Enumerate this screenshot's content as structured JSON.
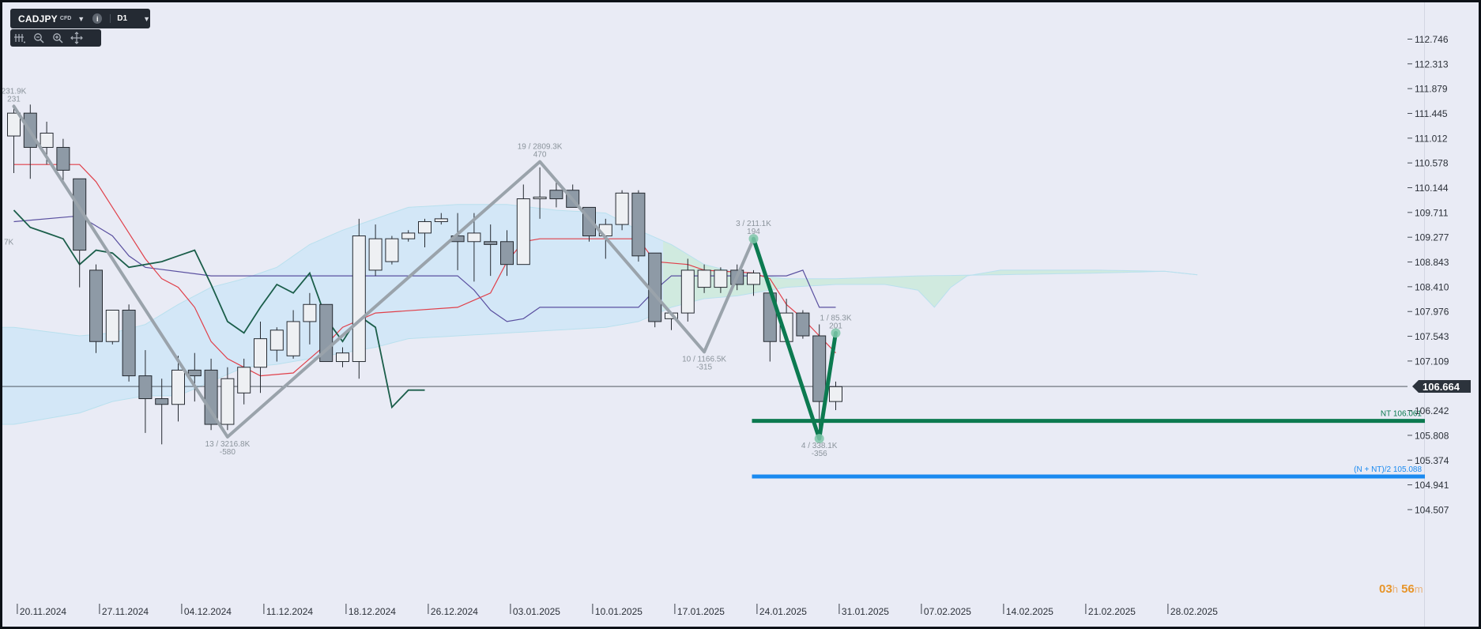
{
  "toolbar": {
    "symbol": "CADJPY",
    "instrument_type": "CFD",
    "timeframe": "D1",
    "info_icon": "info-icon"
  },
  "tools": [
    "crosshair-settings-icon",
    "zoom-out-icon",
    "zoom-in-icon",
    "pan-move-icon"
  ],
  "countdown": {
    "hours": "03",
    "h_unit": "h",
    "minutes": "56",
    "m_unit": "m"
  },
  "colors": {
    "background": "#e9ebf5",
    "bull_candle": "#eef0f3",
    "bear_candle": "#8e9aa6",
    "tenkan": "#e0404a",
    "kijun": "#5a50a0",
    "chikou": "#1b5e4a",
    "cloud": "#cfe6f7",
    "cloud_green": "#cdeadd",
    "zigzag": "#9aa3ab",
    "harmonic": "#0c7a50",
    "nt_line": "#0c7a50",
    "nnt_line": "#1a8af0",
    "price_label": "#2c333c"
  },
  "chart_data": {
    "type": "candlestick",
    "symbol": "CADJPY",
    "timeframe": "D1",
    "ylim": [
      104.3,
      113.1
    ],
    "y_ticks": [
      "112.746",
      "112.313",
      "111.879",
      "111.445",
      "111.012",
      "110.578",
      "110.144",
      "109.711",
      "109.277",
      "108.843",
      "108.410",
      "107.976",
      "107.543",
      "107.109",
      "106.242",
      "105.808",
      "105.374",
      "104.941",
      "104.507"
    ],
    "x_labels": [
      {
        "i": 0.5,
        "label": "20.11.2024"
      },
      {
        "i": 5.5,
        "label": "27.11.2024"
      },
      {
        "i": 10.5,
        "label": "04.12.2024"
      },
      {
        "i": 15.5,
        "label": "11.12.2024"
      },
      {
        "i": 20.5,
        "label": "18.12.2024"
      },
      {
        "i": 25.5,
        "label": "26.12.2024"
      },
      {
        "i": 30.5,
        "label": "03.01.2025"
      },
      {
        "i": 35.5,
        "label": "10.01.2025"
      },
      {
        "i": 40.5,
        "label": "17.01.2025"
      },
      {
        "i": 45.5,
        "label": "24.01.2025"
      },
      {
        "i": 50.5,
        "label": "31.01.2025"
      },
      {
        "i": 55.5,
        "label": "07.02.2025"
      },
      {
        "i": 60.5,
        "label": "14.02.2025"
      },
      {
        "i": 65.5,
        "label": "21.02.2025"
      },
      {
        "i": 70.5,
        "label": "28.02.2025"
      }
    ],
    "current_price": "106.664",
    "candles": [
      {
        "o": 111.05,
        "h": 111.6,
        "l": 110.4,
        "c": 111.45
      },
      {
        "o": 111.45,
        "h": 111.6,
        "l": 110.3,
        "c": 110.85
      },
      {
        "o": 110.85,
        "h": 111.3,
        "l": 110.55,
        "c": 111.1
      },
      {
        "o": 110.85,
        "h": 111.0,
        "l": 110.2,
        "c": 110.45
      },
      {
        "o": 110.3,
        "h": 110.3,
        "l": 108.4,
        "c": 109.05
      },
      {
        "o": 108.7,
        "h": 108.8,
        "l": 107.25,
        "c": 107.45
      },
      {
        "o": 107.45,
        "h": 108.0,
        "l": 107.4,
        "c": 108.0
      },
      {
        "o": 108.0,
        "h": 108.1,
        "l": 106.75,
        "c": 106.85
      },
      {
        "o": 106.85,
        "h": 107.3,
        "l": 105.85,
        "c": 106.45
      },
      {
        "o": 106.45,
        "h": 106.8,
        "l": 105.65,
        "c": 106.35
      },
      {
        "o": 106.35,
        "h": 107.2,
        "l": 106.05,
        "c": 106.95
      },
      {
        "o": 106.95,
        "h": 107.25,
        "l": 106.4,
        "c": 106.85
      },
      {
        "o": 106.95,
        "h": 107.15,
        "l": 105.9,
        "c": 106.0
      },
      {
        "o": 106.0,
        "h": 107.0,
        "l": 105.9,
        "c": 106.8
      },
      {
        "o": 106.55,
        "h": 107.15,
        "l": 106.35,
        "c": 107.0
      },
      {
        "o": 107.0,
        "h": 107.8,
        "l": 106.55,
        "c": 107.5
      },
      {
        "o": 107.3,
        "h": 107.7,
        "l": 107.1,
        "c": 107.65
      },
      {
        "o": 107.2,
        "h": 108.0,
        "l": 107.15,
        "c": 107.8
      },
      {
        "o": 107.8,
        "h": 108.3,
        "l": 107.4,
        "c": 108.1
      },
      {
        "o": 108.1,
        "h": 108.1,
        "l": 107.1,
        "c": 107.1
      },
      {
        "o": 107.1,
        "h": 107.35,
        "l": 107.0,
        "c": 107.25
      },
      {
        "o": 107.1,
        "h": 109.6,
        "l": 106.8,
        "c": 109.3
      },
      {
        "o": 108.7,
        "h": 109.5,
        "l": 108.6,
        "c": 109.25
      },
      {
        "o": 108.85,
        "h": 109.3,
        "l": 108.8,
        "c": 109.25
      },
      {
        "o": 109.25,
        "h": 109.4,
        "l": 109.2,
        "c": 109.35
      },
      {
        "o": 109.35,
        "h": 109.6,
        "l": 109.1,
        "c": 109.55
      },
      {
        "o": 109.55,
        "h": 109.7,
        "l": 109.5,
        "c": 109.6
      },
      {
        "o": 109.3,
        "h": 109.7,
        "l": 108.7,
        "c": 109.2
      },
      {
        "o": 109.2,
        "h": 109.7,
        "l": 108.5,
        "c": 109.35
      },
      {
        "o": 109.2,
        "h": 109.5,
        "l": 108.6,
        "c": 109.15
      },
      {
        "o": 109.2,
        "h": 109.4,
        "l": 108.6,
        "c": 108.8
      },
      {
        "o": 108.8,
        "h": 110.2,
        "l": 108.8,
        "c": 109.95
      },
      {
        "o": 109.95,
        "h": 110.5,
        "l": 109.6,
        "c": 109.98
      },
      {
        "o": 110.1,
        "h": 110.3,
        "l": 109.8,
        "c": 109.95
      },
      {
        "o": 110.1,
        "h": 110.2,
        "l": 109.8,
        "c": 109.8
      },
      {
        "o": 109.8,
        "h": 109.8,
        "l": 109.2,
        "c": 109.3
      },
      {
        "o": 109.3,
        "h": 109.6,
        "l": 108.9,
        "c": 109.5
      },
      {
        "o": 109.5,
        "h": 110.1,
        "l": 109.4,
        "c": 110.05
      },
      {
        "o": 110.05,
        "h": 110.1,
        "l": 108.85,
        "c": 108.95
      },
      {
        "o": 109.0,
        "h": 109.0,
        "l": 107.7,
        "c": 107.8
      },
      {
        "o": 107.85,
        "h": 107.95,
        "l": 107.65,
        "c": 107.95
      },
      {
        "o": 107.95,
        "h": 108.9,
        "l": 107.8,
        "c": 108.7
      },
      {
        "o": 108.4,
        "h": 108.8,
        "l": 108.3,
        "c": 108.7
      },
      {
        "o": 108.4,
        "h": 108.75,
        "l": 108.3,
        "c": 108.7
      },
      {
        "o": 108.7,
        "h": 108.8,
        "l": 108.35,
        "c": 108.45
      },
      {
        "o": 108.45,
        "h": 108.7,
        "l": 108.25,
        "c": 108.65
      },
      {
        "o": 108.3,
        "h": 108.4,
        "l": 107.1,
        "c": 107.45
      },
      {
        "o": 107.45,
        "h": 108.2,
        "l": 107.4,
        "c": 107.95
      },
      {
        "o": 107.95,
        "h": 108.0,
        "l": 107.5,
        "c": 107.55
      },
      {
        "o": 107.55,
        "h": 107.75,
        "l": 105.8,
        "c": 106.4
      },
      {
        "o": 106.4,
        "h": 106.75,
        "l": 106.25,
        "c": 106.66
      }
    ],
    "indicators": {
      "tenkan": [
        [
          0,
          110.55
        ],
        [
          4,
          110.55
        ],
        [
          5,
          110.25
        ],
        [
          6,
          109.8
        ],
        [
          7,
          109.35
        ],
        [
          8,
          108.9
        ],
        [
          9,
          108.55
        ],
        [
          10,
          108.4
        ],
        [
          11,
          108.05
        ],
        [
          12,
          107.45
        ],
        [
          13,
          107.15
        ],
        [
          14,
          107.0
        ],
        [
          15,
          106.85
        ],
        [
          17,
          106.9
        ],
        [
          18,
          107.15
        ],
        [
          19,
          107.4
        ],
        [
          20,
          107.7
        ],
        [
          22,
          107.95
        ],
        [
          27,
          108.05
        ],
        [
          29,
          108.3
        ],
        [
          30,
          108.85
        ],
        [
          31,
          109.2
        ],
        [
          32,
          109.25
        ],
        [
          38,
          109.25
        ],
        [
          39,
          108.85
        ],
        [
          41,
          108.8
        ],
        [
          42,
          108.7
        ],
        [
          45,
          108.65
        ],
        [
          46,
          108.55
        ],
        [
          47,
          108.1
        ],
        [
          48,
          107.85
        ],
        [
          49,
          107.55
        ],
        [
          50,
          107.25
        ]
      ],
      "kijun": [
        [
          0,
          109.55
        ],
        [
          4,
          109.65
        ],
        [
          6,
          109.3
        ],
        [
          7,
          108.95
        ],
        [
          8,
          108.75
        ],
        [
          12,
          108.6
        ],
        [
          27,
          108.6
        ],
        [
          28,
          108.35
        ],
        [
          29,
          108.0
        ],
        [
          30,
          107.8
        ],
        [
          31,
          107.85
        ],
        [
          32,
          108.05
        ],
        [
          38,
          108.05
        ],
        [
          39,
          108.35
        ],
        [
          40,
          108.6
        ],
        [
          47,
          108.6
        ],
        [
          48,
          108.7
        ],
        [
          49,
          108.05
        ],
        [
          50,
          108.05
        ]
      ],
      "chikou": [
        [
          0,
          109.75
        ],
        [
          1,
          109.45
        ],
        [
          2,
          109.35
        ],
        [
          3,
          109.25
        ],
        [
          4,
          108.8
        ],
        [
          5,
          109.05
        ],
        [
          6,
          109.0
        ],
        [
          7,
          108.75
        ],
        [
          9,
          108.85
        ],
        [
          10,
          108.95
        ],
        [
          11,
          109.05
        ],
        [
          12,
          108.45
        ],
        [
          13,
          107.8
        ],
        [
          14,
          107.6
        ],
        [
          15,
          108.05
        ],
        [
          16,
          108.45
        ],
        [
          17,
          108.3
        ],
        [
          18,
          108.65
        ],
        [
          19,
          107.85
        ],
        [
          20,
          107.45
        ],
        [
          21,
          107.9
        ],
        [
          22,
          107.7
        ],
        [
          23,
          106.3
        ],
        [
          24,
          106.6
        ],
        [
          25,
          106.6
        ]
      ],
      "cloud_upper": [
        [
          0,
          107.7
        ],
        [
          4,
          107.55
        ],
        [
          6,
          107.6
        ],
        [
          8,
          107.75
        ],
        [
          10,
          108.1
        ],
        [
          12,
          108.4
        ],
        [
          14,
          108.55
        ],
        [
          16,
          108.75
        ],
        [
          18,
          109.15
        ],
        [
          20,
          109.4
        ],
        [
          22,
          109.6
        ],
        [
          24,
          109.8
        ],
        [
          27,
          109.85
        ],
        [
          30,
          109.85
        ],
        [
          33,
          109.75
        ],
        [
          36,
          109.7
        ],
        [
          38,
          109.4
        ],
        [
          40,
          109.15
        ],
        [
          42,
          108.8
        ],
        [
          44,
          108.65
        ],
        [
          47,
          108.55
        ],
        [
          50,
          108.55
        ],
        [
          55,
          108.6
        ],
        [
          60,
          108.62
        ],
        [
          66,
          108.65
        ],
        [
          70,
          108.68
        ],
        [
          72,
          108.62
        ]
      ],
      "cloud_lower": [
        [
          0,
          106.0
        ],
        [
          4,
          106.2
        ],
        [
          6,
          106.4
        ],
        [
          8,
          106.5
        ],
        [
          10,
          106.5
        ],
        [
          12,
          106.75
        ],
        [
          14,
          107.0
        ],
        [
          16,
          107.05
        ],
        [
          18,
          107.15
        ],
        [
          20,
          107.25
        ],
        [
          22,
          107.35
        ],
        [
          24,
          107.5
        ],
        [
          27,
          107.55
        ],
        [
          30,
          107.6
        ],
        [
          33,
          107.65
        ],
        [
          36,
          107.7
        ],
        [
          38,
          107.8
        ],
        [
          40,
          108.05
        ],
        [
          42,
          108.2
        ],
        [
          44,
          108.25
        ],
        [
          47,
          108.4
        ],
        [
          50,
          108.45
        ],
        [
          53,
          108.45
        ],
        [
          55,
          108.35
        ],
        [
          56,
          108.05
        ],
        [
          57,
          108.4
        ],
        [
          58,
          108.6
        ],
        [
          60,
          108.7
        ],
        [
          66,
          108.7
        ],
        [
          70,
          108.68
        ],
        [
          72,
          108.62
        ]
      ],
      "green_cloud_from": 39.5
    },
    "zigzag": [
      [
        0,
        111.57
      ],
      [
        13,
        105.78
      ],
      [
        32,
        110.6
      ],
      [
        42,
        107.27
      ],
      [
        45,
        109.25
      ],
      [
        49,
        105.75
      ],
      [
        50,
        107.6
      ]
    ],
    "harmonic": [
      [
        45,
        109.25
      ],
      [
        49,
        105.75
      ],
      [
        50,
        107.6
      ]
    ],
    "zigzag_labels": [
      {
        "i": 0,
        "p": 111.57,
        "lines": [
          "231.9K",
          "231"
        ],
        "pos": "above"
      },
      {
        "i": 13,
        "p": 105.78,
        "lines": [
          "13 / 3216.8K",
          "-580"
        ],
        "pos": "below"
      },
      {
        "i": 32,
        "p": 110.6,
        "lines": [
          "19 / 2809.3K",
          "470"
        ],
        "pos": "above"
      },
      {
        "i": 42,
        "p": 107.27,
        "lines": [
          "10 / 1166.5K",
          "-315"
        ],
        "pos": "below"
      },
      {
        "i": 45,
        "p": 109.25,
        "lines": [
          "3 / 211.1K",
          "194"
        ],
        "pos": "above"
      },
      {
        "i": 49,
        "p": 105.75,
        "lines": [
          "4 / 338.1K",
          "-356"
        ],
        "pos": "below"
      },
      {
        "i": 50,
        "p": 107.6,
        "lines": [
          "1 / 85.3K",
          "201"
        ],
        "pos": "above"
      }
    ],
    "left_edge_label": "7K",
    "levels": [
      {
        "name": "nt",
        "price": 106.061,
        "label": "NT 106.061",
        "from_i": 45
      },
      {
        "name": "nnt",
        "price": 105.088,
        "label": "(N + NT)/2 105.088",
        "from_i": 45
      }
    ]
  }
}
